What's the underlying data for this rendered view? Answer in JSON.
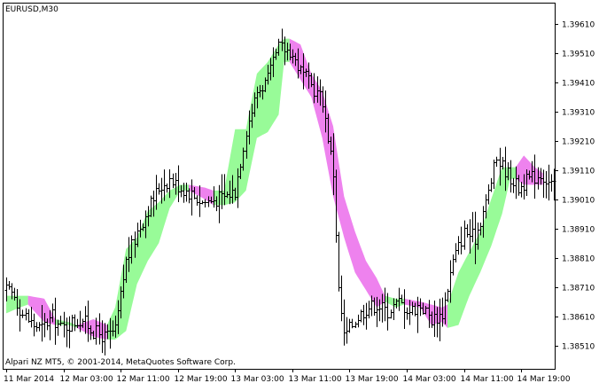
{
  "chart_data": {
    "type": "ohlc",
    "title": "EURUSD,M30",
    "footer": "Alpari NZ MT5, © 2001-2014, MetaQuotes Software Corp.",
    "ylim": [
      1.3843,
      1.3968
    ],
    "y_ticks": [
      "1.39610",
      "1.39510",
      "1.39410",
      "1.39310",
      "1.39210",
      "1.39110",
      "1.39010",
      "1.38910",
      "1.38810",
      "1.38710",
      "1.38610",
      "1.38510"
    ],
    "x_ticks": [
      {
        "label": "11 Mar 2014",
        "bar": 0
      },
      {
        "label": "12 Mar 03:00",
        "bar": 21
      },
      {
        "label": "12 Mar 11:00",
        "bar": 42
      },
      {
        "label": "12 Mar 19:00",
        "bar": 63
      },
      {
        "label": "13 Mar 03:00",
        "bar": 84
      },
      {
        "label": "13 Mar 11:00",
        "bar": 105
      },
      {
        "label": "13 Mar 19:00",
        "bar": 126
      },
      {
        "label": "14 Mar 03:00",
        "bar": 147
      },
      {
        "label": "14 Mar 11:00",
        "bar": 168
      },
      {
        "label": "14 Mar 19:00",
        "bar": 189
      }
    ],
    "grid": false,
    "bar_count": 202,
    "colors": {
      "axis": "#000000",
      "bars": "#000000",
      "cloud_bull": "#98FB98",
      "cloud_bear": "#EE82EE",
      "background": "#FFFFFF"
    },
    "price_anchors": [
      [
        0,
        1.387
      ],
      [
        3,
        1.3868
      ],
      [
        6,
        1.3862
      ],
      [
        10,
        1.3858
      ],
      [
        13,
        1.3857
      ],
      [
        17,
        1.3861
      ],
      [
        20,
        1.3857
      ],
      [
        24,
        1.3859
      ],
      [
        28,
        1.386
      ],
      [
        32,
        1.3856
      ],
      [
        36,
        1.3854
      ],
      [
        40,
        1.3856
      ],
      [
        44,
        1.388
      ],
      [
        48,
        1.389
      ],
      [
        52,
        1.3898
      ],
      [
        56,
        1.3905
      ],
      [
        60,
        1.3908
      ],
      [
        64,
        1.3905
      ],
      [
        68,
        1.3903
      ],
      [
        72,
        1.39
      ],
      [
        76,
        1.3901
      ],
      [
        80,
        1.3902
      ],
      [
        84,
        1.3904
      ],
      [
        88,
        1.3925
      ],
      [
        92,
        1.3938
      ],
      [
        96,
        1.3942
      ],
      [
        100,
        1.3953
      ],
      [
        104,
        1.3952
      ],
      [
        108,
        1.3945
      ],
      [
        112,
        1.394
      ],
      [
        116,
        1.3935
      ],
      [
        120,
        1.391
      ],
      [
        122,
        1.387
      ],
      [
        124,
        1.3854
      ],
      [
        128,
        1.386
      ],
      [
        132,
        1.3864
      ],
      [
        136,
        1.3865
      ],
      [
        140,
        1.3863
      ],
      [
        144,
        1.3866
      ],
      [
        148,
        1.3863
      ],
      [
        152,
        1.3865
      ],
      [
        156,
        1.386
      ],
      [
        160,
        1.3862
      ],
      [
        164,
        1.388
      ],
      [
        168,
        1.389
      ],
      [
        172,
        1.3888
      ],
      [
        176,
        1.39
      ],
      [
        180,
        1.3915
      ],
      [
        184,
        1.391
      ],
      [
        188,
        1.3905
      ],
      [
        192,
        1.3908
      ],
      [
        196,
        1.391
      ],
      [
        201,
        1.3905
      ]
    ],
    "cloud": [
      {
        "bar": 0,
        "top": 1.3868,
        "bottom": 1.3862,
        "trend": "bull"
      },
      {
        "bar": 5,
        "top": 1.3868,
        "bottom": 1.3864,
        "trend": "bull"
      },
      {
        "bar": 8,
        "top": 1.3868,
        "bottom": 1.3865,
        "trend": "bear"
      },
      {
        "bar": 14,
        "top": 1.3867,
        "bottom": 1.3859,
        "trend": "bear"
      },
      {
        "bar": 18,
        "top": 1.386,
        "bottom": 1.3858,
        "trend": "bull"
      },
      {
        "bar": 23,
        "top": 1.3859,
        "bottom": 1.3858,
        "trend": "bull"
      },
      {
        "bar": 26,
        "top": 1.3858,
        "bottom": 1.3857,
        "trend": "bear"
      },
      {
        "bar": 32,
        "top": 1.386,
        "bottom": 1.3854,
        "trend": "bear"
      },
      {
        "bar": 37,
        "top": 1.3858,
        "bottom": 1.3853,
        "trend": "bull"
      },
      {
        "bar": 40,
        "top": 1.3864,
        "bottom": 1.3853,
        "trend": "bull"
      },
      {
        "bar": 44,
        "top": 1.3884,
        "bottom": 1.3856,
        "trend": "bull"
      },
      {
        "bar": 48,
        "top": 1.3888,
        "bottom": 1.3872,
        "trend": "bull"
      },
      {
        "bar": 52,
        "top": 1.3897,
        "bottom": 1.388,
        "trend": "bull"
      },
      {
        "bar": 56,
        "top": 1.39,
        "bottom": 1.3886,
        "trend": "bull"
      },
      {
        "bar": 60,
        "top": 1.3904,
        "bottom": 1.3898,
        "trend": "bull"
      },
      {
        "bar": 64,
        "top": 1.3906,
        "bottom": 1.3904,
        "trend": "bull"
      },
      {
        "bar": 67,
        "top": 1.3906,
        "bottom": 1.3904,
        "trend": "bear"
      },
      {
        "bar": 73,
        "top": 1.3905,
        "bottom": 1.3901,
        "trend": "bear"
      },
      {
        "bar": 76,
        "top": 1.3904,
        "bottom": 1.3899,
        "trend": "bull"
      },
      {
        "bar": 80,
        "top": 1.3904,
        "bottom": 1.3899,
        "trend": "bull"
      },
      {
        "bar": 84,
        "top": 1.3925,
        "bottom": 1.39,
        "trend": "bull"
      },
      {
        "bar": 88,
        "top": 1.3925,
        "bottom": 1.3904,
        "trend": "bull"
      },
      {
        "bar": 92,
        "top": 1.3944,
        "bottom": 1.3922,
        "trend": "bull"
      },
      {
        "bar": 96,
        "top": 1.3948,
        "bottom": 1.3924,
        "trend": "bull"
      },
      {
        "bar": 100,
        "top": 1.3954,
        "bottom": 1.393,
        "trend": "bull"
      },
      {
        "bar": 102,
        "top": 1.3956,
        "bottom": 1.3948,
        "trend": "bull"
      },
      {
        "bar": 104,
        "top": 1.3956,
        "bottom": 1.3948,
        "trend": "bear"
      },
      {
        "bar": 108,
        "top": 1.3954,
        "bottom": 1.3942,
        "trend": "bear"
      },
      {
        "bar": 112,
        "top": 1.3944,
        "bottom": 1.3936,
        "trend": "bear"
      },
      {
        "bar": 116,
        "top": 1.3938,
        "bottom": 1.3922,
        "trend": "bear"
      },
      {
        "bar": 120,
        "top": 1.3926,
        "bottom": 1.3902,
        "trend": "bear"
      },
      {
        "bar": 124,
        "top": 1.3902,
        "bottom": 1.3888,
        "trend": "bear"
      },
      {
        "bar": 128,
        "top": 1.389,
        "bottom": 1.3876,
        "trend": "bear"
      },
      {
        "bar": 132,
        "top": 1.388,
        "bottom": 1.387,
        "trend": "bear"
      },
      {
        "bar": 136,
        "top": 1.3874,
        "bottom": 1.3864,
        "trend": "bear"
      },
      {
        "bar": 139,
        "top": 1.3868,
        "bottom": 1.3866,
        "trend": "bull"
      },
      {
        "bar": 143,
        "top": 1.3867,
        "bottom": 1.3864,
        "trend": "bull"
      },
      {
        "bar": 146,
        "top": 1.3867,
        "bottom": 1.3865,
        "trend": "bear"
      },
      {
        "bar": 152,
        "top": 1.3866,
        "bottom": 1.3864,
        "trend": "bear"
      },
      {
        "bar": 156,
        "top": 1.3865,
        "bottom": 1.3858,
        "trend": "bear"
      },
      {
        "bar": 160,
        "top": 1.3864,
        "bottom": 1.3859,
        "trend": "bear"
      },
      {
        "bar": 162,
        "top": 1.3865,
        "bottom": 1.3857,
        "trend": "bull"
      },
      {
        "bar": 166,
        "top": 1.3876,
        "bottom": 1.3858,
        "trend": "bull"
      },
      {
        "bar": 170,
        "top": 1.3883,
        "bottom": 1.3868,
        "trend": "bull"
      },
      {
        "bar": 174,
        "top": 1.389,
        "bottom": 1.3876,
        "trend": "bull"
      },
      {
        "bar": 178,
        "top": 1.3901,
        "bottom": 1.3885,
        "trend": "bull"
      },
      {
        "bar": 182,
        "top": 1.3912,
        "bottom": 1.3896,
        "trend": "bull"
      },
      {
        "bar": 185,
        "top": 1.3912,
        "bottom": 1.3908,
        "trend": "bull"
      },
      {
        "bar": 187,
        "top": 1.3912,
        "bottom": 1.3908,
        "trend": "bear"
      },
      {
        "bar": 190,
        "top": 1.3916,
        "bottom": 1.3906,
        "trend": "bear"
      },
      {
        "bar": 194,
        "top": 1.3912,
        "bottom": 1.3906,
        "trend": "bear"
      },
      {
        "bar": 197,
        "top": 1.391,
        "bottom": 1.3906,
        "trend": "bear"
      }
    ]
  }
}
